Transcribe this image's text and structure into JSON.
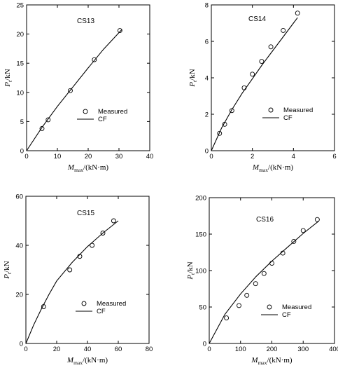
{
  "chart_data": [
    {
      "type": "scatter",
      "title": "CS13",
      "xlabel": {
        "main": "M",
        "sub": "max",
        "unit": "/(kN·m)"
      },
      "ylabel": {
        "main": "P",
        "sub": "t",
        "unit": "/kN"
      },
      "xlim": [
        0,
        40
      ],
      "ylim": [
        0,
        25
      ],
      "xticks": [
        "0",
        "10",
        "20",
        "30",
        "40"
      ],
      "yticks": [
        "0",
        "5",
        "10",
        "15",
        "20",
        "25"
      ],
      "series": [
        {
          "name": "Measured",
          "kind": "points",
          "x": [
            5,
            7,
            14.2,
            22,
            30.3
          ],
          "y": [
            3.8,
            5.3,
            10.3,
            15.6,
            20.6
          ]
        },
        {
          "name": "CF",
          "kind": "line",
          "x": [
            0,
            5,
            10,
            15,
            20,
            25,
            31
          ],
          "y": [
            0,
            4.0,
            7.6,
            10.9,
            14.2,
            17.4,
            20.8
          ]
        }
      ],
      "legend_position": "bottom-right"
    },
    {
      "type": "scatter",
      "title": "CS14",
      "xlabel": {
        "main": "M",
        "sub": "max",
        "unit": "/(kN·m)"
      },
      "ylabel": {
        "main": "P",
        "sub": "t",
        "unit": "/kN"
      },
      "xlim": [
        0,
        6
      ],
      "ylim": [
        0,
        8
      ],
      "xticks": [
        "0",
        "2",
        "4",
        "6"
      ],
      "yticks": [
        "0",
        "2",
        "4",
        "6",
        "8"
      ],
      "series": [
        {
          "name": "Measured",
          "kind": "points",
          "x": [
            0.4,
            0.65,
            1.0,
            1.6,
            2.0,
            2.45,
            2.9,
            3.5,
            4.2
          ],
          "y": [
            0.95,
            1.45,
            2.2,
            3.45,
            4.2,
            4.9,
            5.7,
            6.6,
            7.55
          ]
        },
        {
          "name": "CF",
          "kind": "line",
          "x": [
            0,
            0.5,
            1,
            1.5,
            2,
            2.5,
            3,
            3.5,
            4,
            4.2
          ],
          "y": [
            0,
            1.25,
            2.25,
            3.15,
            3.95,
            4.75,
            5.5,
            6.25,
            7.0,
            7.3
          ]
        }
      ],
      "legend_position": "bottom-right"
    },
    {
      "type": "scatter",
      "title": "CS15",
      "xlabel": {
        "main": "M",
        "sub": "max",
        "unit": "/(kN·m)"
      },
      "ylabel": {
        "main": "P",
        "sub": "t",
        "unit": "/kN"
      },
      "xlim": [
        0,
        80
      ],
      "ylim": [
        0,
        60
      ],
      "xticks": [
        "0",
        "20",
        "40",
        "60",
        "80"
      ],
      "yticks": [
        "0",
        "20",
        "40",
        "60"
      ],
      "series": [
        {
          "name": "Measured",
          "kind": "points",
          "x": [
            11.5,
            28.5,
            35,
            43,
            50,
            57
          ],
          "y": [
            15,
            30,
            35.5,
            40,
            45,
            50
          ]
        },
        {
          "name": "CF",
          "kind": "line",
          "x": [
            0,
            5,
            10,
            15,
            20,
            30,
            40,
            50,
            60
          ],
          "y": [
            0,
            7.5,
            14,
            20,
            25.5,
            33,
            39.5,
            45,
            50
          ]
        }
      ],
      "legend_position": "bottom-right"
    },
    {
      "type": "scatter",
      "title": "CS16",
      "xlabel": {
        "main": "M",
        "sub": "max",
        "unit": "/(kN·m)"
      },
      "ylabel": {
        "main": "P",
        "sub": "t",
        "unit": "/kN"
      },
      "xlim": [
        0,
        400
      ],
      "ylim": [
        0,
        200
      ],
      "xticks": [
        "0",
        "100",
        "200",
        "300",
        "400"
      ],
      "yticks": [
        "0",
        "50",
        "100",
        "150",
        "200"
      ],
      "series": [
        {
          "name": "Measured",
          "kind": "points",
          "x": [
            55,
            95,
            120,
            148,
            175,
            200,
            235,
            270,
            300,
            345
          ],
          "y": [
            35,
            52,
            66,
            82,
            96,
            110,
            124,
            140,
            155,
            170
          ]
        },
        {
          "name": "CF",
          "kind": "line",
          "x": [
            0,
            50,
            100,
            150,
            200,
            250,
            300,
            350
          ],
          "y": [
            0,
            40,
            68,
            92,
            113,
            132,
            151,
            168
          ]
        }
      ],
      "legend_position": "bottom-right"
    }
  ]
}
